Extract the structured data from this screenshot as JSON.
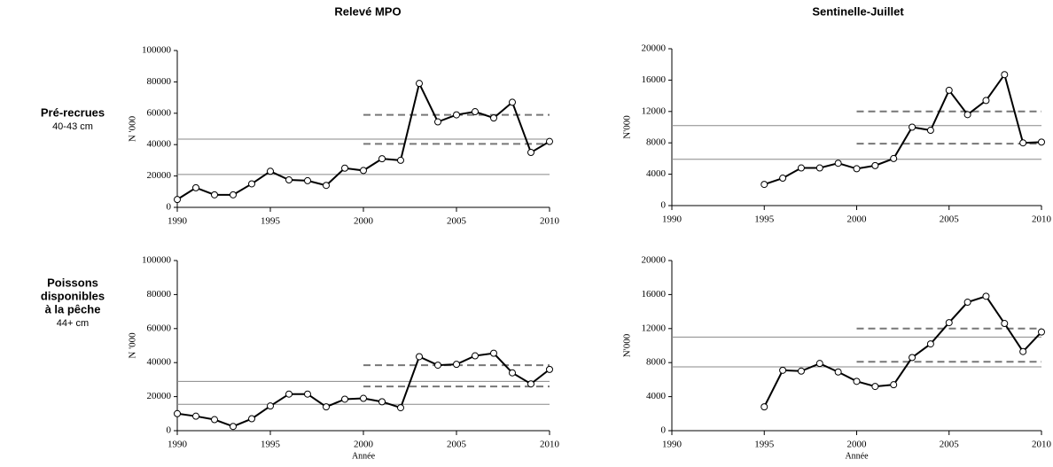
{
  "column_titles": [
    "Relevé MPO",
    "Sentinelle-Juillet"
  ],
  "row_labels": [
    {
      "title": [
        "Pré-recrues"
      ],
      "subtitle": "40-43 cm"
    },
    {
      "title": [
        "Poissons",
        "disponibles",
        "à la pêche"
      ],
      "subtitle": "44+ cm"
    }
  ],
  "chart_data": [
    {
      "type": "line",
      "ylabel": "N '000",
      "color": "#000000",
      "x": [
        1990,
        1991,
        1992,
        1993,
        1994,
        1995,
        1996,
        1997,
        1998,
        1999,
        2000,
        2001,
        2002,
        2003,
        2004,
        2005,
        2006,
        2007,
        2008,
        2009,
        2010
      ],
      "values": [
        5000,
        12500,
        8000,
        8000,
        15000,
        23000,
        17500,
        17000,
        14000,
        25000,
        23500,
        31000,
        30000,
        79000,
        54500,
        59000,
        61000,
        57000,
        67000,
        35000,
        42000
      ],
      "xlim": [
        1990,
        2010
      ],
      "xticks": [
        1990,
        1995,
        2000,
        2005,
        2010
      ],
      "ylim": [
        0,
        100000
      ],
      "yticks": [
        0,
        20000,
        40000,
        60000,
        80000,
        100000
      ],
      "reference_lines": [
        {
          "value": 43500,
          "from": 1990,
          "to": 2010,
          "dashed": false
        },
        {
          "value": 21000,
          "from": 1990,
          "to": 2010,
          "dashed": false
        },
        {
          "value": 59000,
          "from": 2000,
          "to": 2010,
          "dashed": true
        },
        {
          "value": 40500,
          "from": 2000,
          "to": 2010,
          "dashed": true
        }
      ]
    },
    {
      "type": "line",
      "ylabel": "N'000",
      "color": "#000000",
      "x": [
        1995,
        1996,
        1997,
        1998,
        1999,
        2000,
        2001,
        2002,
        2003,
        2004,
        2005,
        2006,
        2007,
        2008,
        2009,
        2010
      ],
      "values": [
        2700,
        3500,
        4800,
        4800,
        5400,
        4700,
        5100,
        6000,
        10000,
        9600,
        14700,
        11600,
        13400,
        16700,
        8000,
        8100
      ],
      "xlim": [
        1990,
        2010
      ],
      "xticks": [
        1990,
        1995,
        2000,
        2005,
        2010
      ],
      "ylim": [
        0,
        20000
      ],
      "yticks": [
        0,
        4000,
        8000,
        12000,
        16000,
        20000
      ],
      "reference_lines": [
        {
          "value": 10200,
          "from": 1990,
          "to": 2010,
          "dashed": false
        },
        {
          "value": 5900,
          "from": 1990,
          "to": 2010,
          "dashed": false
        },
        {
          "value": 12000,
          "from": 2000,
          "to": 2010,
          "dashed": true
        },
        {
          "value": 7900,
          "from": 2000,
          "to": 2010,
          "dashed": true
        }
      ]
    },
    {
      "type": "line",
      "ylabel": "N '000",
      "xlabel": "Année",
      "color": "#000000",
      "x": [
        1990,
        1991,
        1992,
        1993,
        1994,
        1995,
        1996,
        1997,
        1998,
        1999,
        2000,
        2001,
        2002,
        2003,
        2004,
        2005,
        2006,
        2007,
        2008,
        2009,
        2010
      ],
      "values": [
        10000,
        8500,
        6500,
        2500,
        7000,
        14500,
        21500,
        21500,
        14000,
        18500,
        19000,
        17000,
        13500,
        43500,
        38500,
        39000,
        44000,
        45500,
        34000,
        27500,
        36000
      ],
      "xlim": [
        1990,
        2010
      ],
      "xticks": [
        1990,
        1995,
        2000,
        2005,
        2010
      ],
      "ylim": [
        0,
        100000
      ],
      "yticks": [
        0,
        20000,
        40000,
        60000,
        80000,
        100000
      ],
      "reference_lines": [
        {
          "value": 29000,
          "from": 1990,
          "to": 2010,
          "dashed": false
        },
        {
          "value": 15500,
          "from": 1990,
          "to": 2010,
          "dashed": false
        },
        {
          "value": 38500,
          "from": 2000,
          "to": 2010,
          "dashed": true
        },
        {
          "value": 26000,
          "from": 2000,
          "to": 2010,
          "dashed": true
        }
      ]
    },
    {
      "type": "line",
      "ylabel": "N'000",
      "xlabel": "Année",
      "color": "#000000",
      "x": [
        1995,
        1996,
        1997,
        1998,
        1999,
        2000,
        2001,
        2002,
        2003,
        2004,
        2005,
        2006,
        2007,
        2008,
        2009,
        2010
      ],
      "values": [
        2800,
        7100,
        7000,
        7900,
        6900,
        5800,
        5200,
        5400,
        8600,
        10200,
        12700,
        15100,
        15800,
        12600,
        9300,
        11600
      ],
      "xlim": [
        1990,
        2010
      ],
      "xticks": [
        1990,
        1995,
        2000,
        2005,
        2010
      ],
      "ylim": [
        0,
        20000
      ],
      "yticks": [
        0,
        4000,
        8000,
        12000,
        16000,
        20000
      ],
      "reference_lines": [
        {
          "value": 11000,
          "from": 1990,
          "to": 2010,
          "dashed": false
        },
        {
          "value": 7500,
          "from": 1990,
          "to": 2010,
          "dashed": false
        },
        {
          "value": 12000,
          "from": 2000,
          "to": 2010,
          "dashed": true
        },
        {
          "value": 8100,
          "from": 2000,
          "to": 2010,
          "dashed": true
        }
      ]
    }
  ]
}
